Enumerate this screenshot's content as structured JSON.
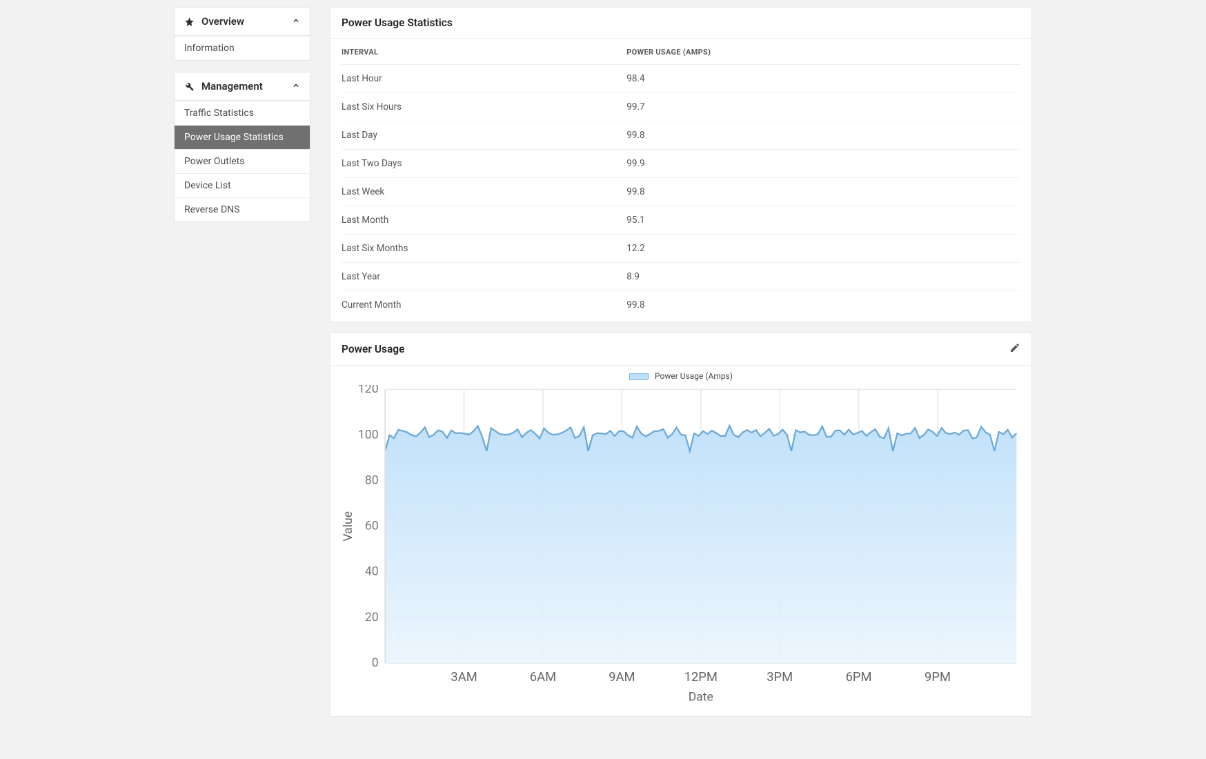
{
  "colors": {
    "page_bg": "#f2f2f2",
    "panel_bg": "#ffffff",
    "border": "#e8e8e8",
    "text": "#333333",
    "muted": "#555555",
    "active_bg": "#707070",
    "active_text": "#ffffff"
  },
  "sidebar": {
    "groups": [
      {
        "icon": "star",
        "label": "Overview",
        "expanded": true,
        "items": [
          {
            "label": "Information",
            "active": false
          }
        ]
      },
      {
        "icon": "wrench",
        "label": "Management",
        "expanded": true,
        "items": [
          {
            "label": "Traffic Statistics",
            "active": false
          },
          {
            "label": "Power Usage Statistics",
            "active": true
          },
          {
            "label": "Power Outlets",
            "active": false
          },
          {
            "label": "Device List",
            "active": false
          },
          {
            "label": "Reverse DNS",
            "active": false
          }
        ]
      }
    ]
  },
  "stats_panel": {
    "title": "Power Usage Statistics",
    "columns": [
      "INTERVAL",
      "POWER USAGE (AMPS)"
    ],
    "rows": [
      [
        "Last Hour",
        "98.4"
      ],
      [
        "Last Six Hours",
        "99.7"
      ],
      [
        "Last Day",
        "99.8"
      ],
      [
        "Last Two Days",
        "99.9"
      ],
      [
        "Last Week",
        "99.8"
      ],
      [
        "Last Month",
        "95.1"
      ],
      [
        "Last Six Months",
        "12.2"
      ],
      [
        "Last Year",
        "8.9"
      ],
      [
        "Current Month",
        "99.8"
      ]
    ]
  },
  "chart_panel": {
    "title": "Power Usage",
    "legend_label": "Power Usage (Amps)",
    "x_label": "Date",
    "y_label": "Value",
    "y_min": 0,
    "y_max": 120,
    "y_step": 20,
    "x_ticks": [
      "3AM",
      "6AM",
      "9AM",
      "12PM",
      "3PM",
      "6PM",
      "9PM"
    ],
    "x_tick_positions_24": [
      3,
      6,
      9,
      12,
      15,
      18,
      21
    ],
    "series_line_color": "#6aa8d8",
    "series_fill_top": "#bfe0fa",
    "series_fill_bottom": "#e9f4fd",
    "grid_color": "#e9e9e9",
    "data_baseline": 101,
    "data_amplitude_low": 4,
    "data_amplitude_high": 8,
    "data_points": 144
  }
}
